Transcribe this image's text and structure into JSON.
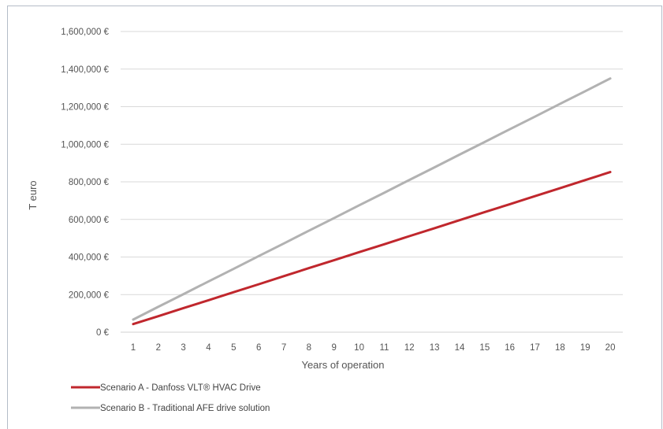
{
  "chart_data": {
    "type": "line",
    "title": "",
    "xlabel": "Years of operation",
    "ylabel": "T euro",
    "x": [
      1,
      2,
      3,
      4,
      5,
      6,
      7,
      8,
      9,
      10,
      11,
      12,
      13,
      14,
      15,
      16,
      17,
      18,
      19,
      20
    ],
    "ylim": [
      0,
      1600000
    ],
    "yticks": [
      0,
      200000,
      400000,
      600000,
      800000,
      1000000,
      1200000,
      1400000,
      1600000
    ],
    "ytick_labels": [
      "0 €",
      "200,000 €",
      "400,000 €",
      "600,000 €",
      "800,000 €",
      "1,000,000 €",
      "1,200,000 €",
      "1,400,000 €",
      "1,600,000 €"
    ],
    "grid": true,
    "legend_position": "bottom-left",
    "series": [
      {
        "name": "Scenario A - Danfoss VLT® HVAC  Drive",
        "color": "#c0272d",
        "values": [
          43000,
          85000,
          128000,
          170000,
          213000,
          255000,
          298000,
          341000,
          383000,
          426000,
          468000,
          511000,
          553000,
          596000,
          639000,
          681000,
          724000,
          766000,
          809000,
          852000
        ]
      },
      {
        "name": "Scenario B - Traditional AFE drive solution",
        "color": "#b2b2b2",
        "values": [
          67000,
          135000,
          202000,
          270000,
          337000,
          405000,
          472000,
          540000,
          607000,
          675000,
          742000,
          810000,
          877000,
          945000,
          1012000,
          1080000,
          1147000,
          1215000,
          1282000,
          1350000
        ]
      }
    ]
  }
}
